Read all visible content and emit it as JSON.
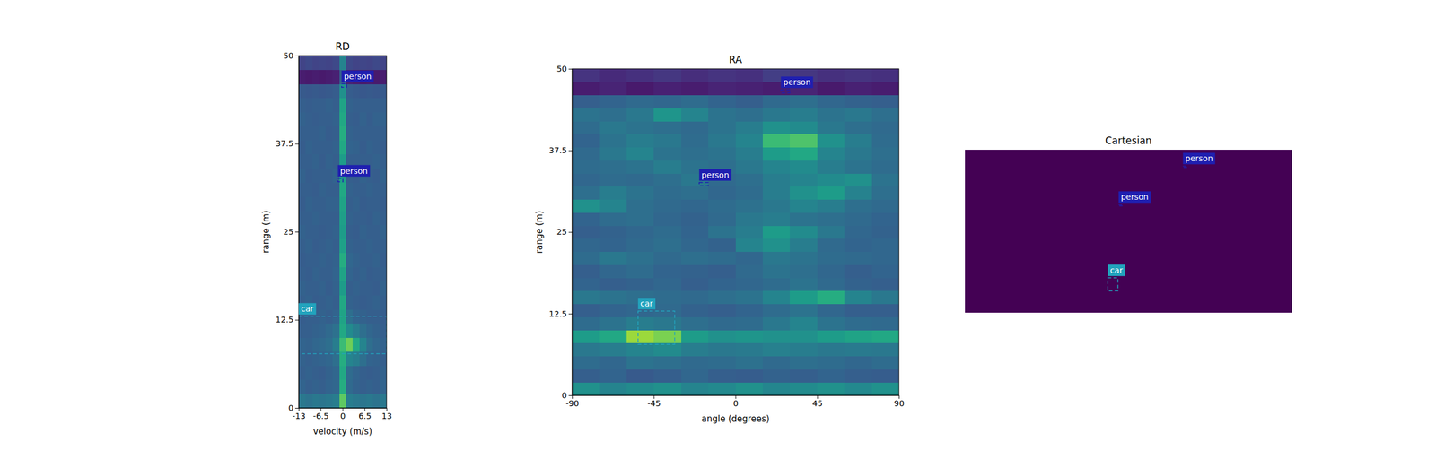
{
  "chart_data": [
    {
      "type": "heatmap",
      "title": "RD",
      "x_label": "velocity (m/s)",
      "y_label": "range (m)",
      "xlim": [
        -13,
        13
      ],
      "ylim": [
        0,
        50
      ],
      "xticks": [
        -13,
        -6.5,
        0,
        6.5,
        13
      ],
      "yticks": [
        0,
        12.5,
        25,
        37.5,
        50
      ],
      "zlim": [
        0,
        1
      ],
      "xbins": [
        -13,
        -11,
        -9,
        -7,
        -5,
        -3,
        -1,
        1,
        3,
        5,
        7,
        9,
        11,
        13
      ],
      "ybins": [
        0,
        2,
        4,
        6,
        8,
        10,
        12,
        14,
        16,
        18,
        20,
        22,
        24,
        26,
        28,
        30,
        32,
        34,
        36,
        38,
        40,
        42,
        44,
        46,
        48,
        50
      ],
      "z": [
        [
          0.4,
          0.38,
          0.4,
          0.39,
          0.4,
          0.42,
          0.75,
          0.42,
          0.4,
          0.39,
          0.4,
          0.38,
          0.4
        ],
        [
          0.32,
          0.3,
          0.31,
          0.3,
          0.32,
          0.33,
          0.62,
          0.34,
          0.31,
          0.3,
          0.31,
          0.3,
          0.32
        ],
        [
          0.3,
          0.31,
          0.3,
          0.29,
          0.31,
          0.33,
          0.6,
          0.35,
          0.32,
          0.3,
          0.29,
          0.3,
          0.31
        ],
        [
          0.31,
          0.3,
          0.31,
          0.32,
          0.33,
          0.36,
          0.62,
          0.45,
          0.42,
          0.36,
          0.32,
          0.31,
          0.3
        ],
        [
          0.32,
          0.31,
          0.33,
          0.34,
          0.36,
          0.42,
          0.68,
          0.78,
          0.6,
          0.45,
          0.36,
          0.33,
          0.31
        ],
        [
          0.3,
          0.3,
          0.31,
          0.32,
          0.34,
          0.37,
          0.6,
          0.48,
          0.42,
          0.36,
          0.33,
          0.31,
          0.3
        ],
        [
          0.29,
          0.3,
          0.3,
          0.31,
          0.3,
          0.32,
          0.58,
          0.36,
          0.32,
          0.31,
          0.3,
          0.3,
          0.29
        ],
        [
          0.3,
          0.31,
          0.29,
          0.3,
          0.31,
          0.3,
          0.6,
          0.31,
          0.3,
          0.29,
          0.3,
          0.31,
          0.3
        ],
        [
          0.31,
          0.3,
          0.3,
          0.31,
          0.29,
          0.31,
          0.55,
          0.3,
          0.31,
          0.3,
          0.3,
          0.29,
          0.31
        ],
        [
          0.3,
          0.29,
          0.31,
          0.3,
          0.3,
          0.32,
          0.58,
          0.32,
          0.3,
          0.31,
          0.29,
          0.3,
          0.3
        ],
        [
          0.29,
          0.3,
          0.3,
          0.31,
          0.3,
          0.31,
          0.62,
          0.33,
          0.31,
          0.3,
          0.3,
          0.31,
          0.29
        ],
        [
          0.3,
          0.31,
          0.29,
          0.3,
          0.31,
          0.3,
          0.57,
          0.31,
          0.3,
          0.3,
          0.31,
          0.3,
          0.3
        ],
        [
          0.31,
          0.3,
          0.3,
          0.29,
          0.3,
          0.31,
          0.55,
          0.3,
          0.29,
          0.31,
          0.3,
          0.3,
          0.31
        ],
        [
          0.3,
          0.3,
          0.31,
          0.3,
          0.3,
          0.3,
          0.56,
          0.31,
          0.3,
          0.3,
          0.29,
          0.31,
          0.3
        ],
        [
          0.29,
          0.31,
          0.3,
          0.3,
          0.31,
          0.31,
          0.58,
          0.3,
          0.31,
          0.29,
          0.3,
          0.3,
          0.29
        ],
        [
          0.3,
          0.3,
          0.29,
          0.31,
          0.3,
          0.3,
          0.6,
          0.31,
          0.3,
          0.3,
          0.31,
          0.3,
          0.3
        ],
        [
          0.31,
          0.29,
          0.3,
          0.3,
          0.3,
          0.32,
          0.57,
          0.3,
          0.29,
          0.31,
          0.3,
          0.29,
          0.31
        ],
        [
          0.3,
          0.3,
          0.31,
          0.29,
          0.31,
          0.3,
          0.55,
          0.3,
          0.3,
          0.3,
          0.3,
          0.31,
          0.3
        ],
        [
          0.29,
          0.31,
          0.3,
          0.3,
          0.3,
          0.31,
          0.6,
          0.32,
          0.31,
          0.29,
          0.31,
          0.3,
          0.29
        ],
        [
          0.3,
          0.3,
          0.3,
          0.31,
          0.29,
          0.3,
          0.62,
          0.31,
          0.3,
          0.3,
          0.3,
          0.3,
          0.3
        ],
        [
          0.31,
          0.3,
          0.29,
          0.3,
          0.3,
          0.31,
          0.6,
          0.3,
          0.29,
          0.31,
          0.29,
          0.31,
          0.31
        ],
        [
          0.3,
          0.29,
          0.3,
          0.3,
          0.31,
          0.3,
          0.58,
          0.31,
          0.3,
          0.3,
          0.3,
          0.3,
          0.3
        ],
        [
          0.28,
          0.27,
          0.28,
          0.27,
          0.28,
          0.29,
          0.5,
          0.29,
          0.28,
          0.27,
          0.28,
          0.27,
          0.28
        ],
        [
          0.08,
          0.07,
          0.08,
          0.07,
          0.08,
          0.09,
          0.3,
          0.09,
          0.08,
          0.07,
          0.08,
          0.07,
          0.08
        ],
        [
          0.2,
          0.22,
          0.2,
          0.21,
          0.2,
          0.22,
          0.45,
          0.22,
          0.2,
          0.21,
          0.2,
          0.22,
          0.2
        ]
      ],
      "boxes": [
        {
          "label": "person",
          "color": "#1f1fb0",
          "x": [
            -0.3,
            1.2
          ],
          "y": [
            45.5,
            46.0
          ]
        },
        {
          "label": "person",
          "color": "#1f1fb0",
          "x": [
            -1.4,
            0.1
          ],
          "y": [
            32.1,
            32.6
          ]
        },
        {
          "label": "car",
          "color": "#22a3bd",
          "x": [
            -13,
            13
          ],
          "y": [
            7.7,
            13.0
          ]
        }
      ]
    },
    {
      "type": "heatmap",
      "title": "RA",
      "x_label": "angle (degrees)",
      "y_label": "range (m)",
      "xlim": [
        -90,
        90
      ],
      "ylim": [
        0,
        50
      ],
      "xticks": [
        -90,
        -45,
        0,
        45,
        90
      ],
      "yticks": [
        0,
        12.5,
        25,
        37.5,
        50
      ],
      "zlim": [
        0,
        1
      ],
      "xbins": [
        -90,
        -75,
        -60,
        -45,
        -30,
        -15,
        0,
        15,
        30,
        45,
        60,
        75,
        90
      ],
      "ybins": [
        0,
        2,
        4,
        6,
        8,
        10,
        12,
        14,
        16,
        18,
        20,
        22,
        24,
        26,
        28,
        30,
        32,
        34,
        36,
        38,
        40,
        42,
        44,
        46,
        48,
        50
      ],
      "z": [
        [
          0.5,
          0.45,
          0.48,
          0.5,
          0.45,
          0.47,
          0.5,
          0.46,
          0.48,
          0.5,
          0.47,
          0.5
        ],
        [
          0.3,
          0.32,
          0.28,
          0.3,
          0.33,
          0.3,
          0.29,
          0.31,
          0.3,
          0.32,
          0.3,
          0.29
        ],
        [
          0.35,
          0.33,
          0.38,
          0.36,
          0.34,
          0.35,
          0.37,
          0.34,
          0.36,
          0.35,
          0.33,
          0.35
        ],
        [
          0.4,
          0.42,
          0.45,
          0.48,
          0.42,
          0.4,
          0.41,
          0.43,
          0.42,
          0.4,
          0.41,
          0.4
        ],
        [
          0.55,
          0.6,
          0.85,
          0.8,
          0.55,
          0.5,
          0.52,
          0.5,
          0.5,
          0.55,
          0.58,
          0.6
        ],
        [
          0.35,
          0.38,
          0.42,
          0.4,
          0.36,
          0.34,
          0.35,
          0.4,
          0.45,
          0.38,
          0.35,
          0.34
        ],
        [
          0.3,
          0.32,
          0.33,
          0.34,
          0.31,
          0.3,
          0.32,
          0.35,
          0.38,
          0.33,
          0.3,
          0.3
        ],
        [
          0.4,
          0.38,
          0.36,
          0.35,
          0.34,
          0.36,
          0.38,
          0.45,
          0.55,
          0.62,
          0.45,
          0.4
        ],
        [
          0.32,
          0.3,
          0.31,
          0.33,
          0.3,
          0.32,
          0.33,
          0.35,
          0.38,
          0.34,
          0.31,
          0.3
        ],
        [
          0.3,
          0.33,
          0.35,
          0.32,
          0.31,
          0.3,
          0.34,
          0.38,
          0.36,
          0.33,
          0.3,
          0.32
        ],
        [
          0.35,
          0.4,
          0.37,
          0.34,
          0.36,
          0.35,
          0.33,
          0.4,
          0.38,
          0.35,
          0.34,
          0.33
        ],
        [
          0.33,
          0.32,
          0.34,
          0.36,
          0.33,
          0.31,
          0.45,
          0.5,
          0.42,
          0.34,
          0.32,
          0.33
        ],
        [
          0.3,
          0.31,
          0.33,
          0.35,
          0.32,
          0.38,
          0.42,
          0.55,
          0.48,
          0.4,
          0.33,
          0.31
        ],
        [
          0.32,
          0.35,
          0.36,
          0.33,
          0.31,
          0.34,
          0.4,
          0.42,
          0.38,
          0.36,
          0.34,
          0.32
        ],
        [
          0.5,
          0.45,
          0.36,
          0.34,
          0.33,
          0.35,
          0.37,
          0.4,
          0.45,
          0.42,
          0.36,
          0.34
        ],
        [
          0.36,
          0.42,
          0.38,
          0.35,
          0.36,
          0.33,
          0.35,
          0.42,
          0.5,
          0.55,
          0.44,
          0.36
        ],
        [
          0.33,
          0.35,
          0.34,
          0.36,
          0.4,
          0.34,
          0.36,
          0.42,
          0.45,
          0.48,
          0.5,
          0.38
        ],
        [
          0.35,
          0.36,
          0.38,
          0.42,
          0.38,
          0.36,
          0.4,
          0.45,
          0.48,
          0.42,
          0.38,
          0.35
        ],
        [
          0.34,
          0.4,
          0.45,
          0.38,
          0.36,
          0.38,
          0.42,
          0.55,
          0.6,
          0.45,
          0.4,
          0.36
        ],
        [
          0.32,
          0.38,
          0.42,
          0.4,
          0.35,
          0.4,
          0.45,
          0.68,
          0.72,
          0.5,
          0.42,
          0.35
        ],
        [
          0.35,
          0.4,
          0.38,
          0.36,
          0.34,
          0.38,
          0.42,
          0.5,
          0.48,
          0.4,
          0.36,
          0.34
        ],
        [
          0.38,
          0.36,
          0.4,
          0.52,
          0.45,
          0.38,
          0.36,
          0.4,
          0.42,
          0.38,
          0.4,
          0.36
        ],
        [
          0.3,
          0.32,
          0.34,
          0.33,
          0.35,
          0.32,
          0.3,
          0.34,
          0.36,
          0.33,
          0.31,
          0.3
        ],
        [
          0.08,
          0.1,
          0.07,
          0.09,
          0.08,
          0.1,
          0.09,
          0.08,
          0.1,
          0.07,
          0.09,
          0.08
        ],
        [
          0.15,
          0.12,
          0.14,
          0.16,
          0.13,
          0.15,
          0.14,
          0.18,
          0.16,
          0.14,
          0.15,
          0.14
        ]
      ],
      "boxes": [
        {
          "label": "person",
          "color": "#1f1fb0",
          "x": [
            25,
            30
          ],
          "y": [
            46.3,
            46.8
          ]
        },
        {
          "label": "person",
          "color": "#1f1fb0",
          "x": [
            -20,
            -15
          ],
          "y": [
            32.1,
            32.6
          ]
        },
        {
          "label": "car",
          "color": "#22a3bd",
          "x": [
            -53.7,
            -33.5
          ],
          "y": [
            7.8,
            12.9
          ]
        }
      ]
    },
    {
      "type": "annotation",
      "title": "Cartesian",
      "tick_labels": false,
      "xlim": [
        -50,
        50
      ],
      "ylim": [
        0,
        50
      ],
      "boxes": [
        {
          "label": "person",
          "color": "#1f1fb0",
          "x": [
            16.7,
            18.0
          ],
          "y": [
            44.6,
            45.0
          ]
        },
        {
          "label": "person",
          "color": "#1f1fb0",
          "x": [
            -3.0,
            -1.7
          ],
          "y": [
            32.8,
            33.2
          ]
        },
        {
          "label": "car",
          "color": "#22a3bd",
          "x": [
            -6.3,
            -3.2
          ],
          "y": [
            6.7,
            10.7
          ]
        }
      ]
    }
  ]
}
